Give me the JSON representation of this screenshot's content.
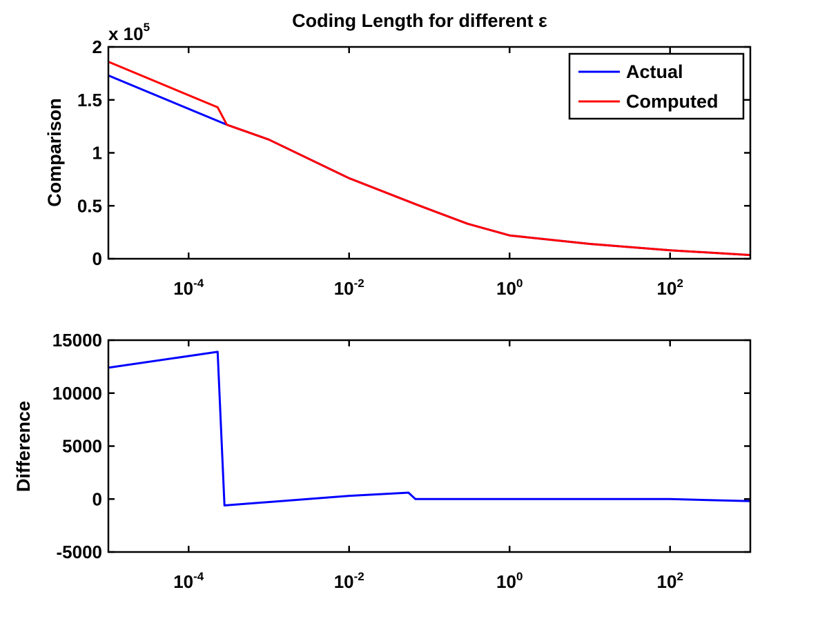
{
  "figure": {
    "title": "Coding Length for different ε"
  },
  "chart_data": [
    {
      "type": "line",
      "id": "top",
      "title": "Coding Length for different ε",
      "xlabel": "",
      "ylabel": "Comparison",
      "x_scale": "log",
      "xlim": [
        1e-05,
        1000
      ],
      "ylim": [
        0,
        200000
      ],
      "multiplier": "x 10^5",
      "multiplier_base": "x 10",
      "multiplier_exp": "5",
      "x_ticks": [
        {
          "value": 0.0001,
          "base": "10",
          "exp": "-4"
        },
        {
          "value": 0.01,
          "base": "10",
          "exp": "-2"
        },
        {
          "value": 1,
          "base": "10",
          "exp": "0"
        },
        {
          "value": 100,
          "base": "10",
          "exp": "2"
        }
      ],
      "y_ticks": [
        {
          "value": 0,
          "label": "0"
        },
        {
          "value": 50000,
          "label": "0.5"
        },
        {
          "value": 100000,
          "label": "1"
        },
        {
          "value": 150000,
          "label": "1.5"
        },
        {
          "value": 200000,
          "label": "2"
        }
      ],
      "grid": false,
      "legend": {
        "placement": "top-right"
      },
      "series": [
        {
          "name": "Actual",
          "color": "#0000ff",
          "points": [
            [
              1e-05,
              173000
            ],
            [
              0.0003,
              126500
            ],
            [
              0.001,
              112500
            ],
            [
              0.01,
              76000
            ],
            [
              0.07,
              51000
            ],
            [
              0.3,
              33000
            ],
            [
              1,
              22000
            ],
            [
              10,
              14000
            ],
            [
              100,
              8000
            ],
            [
              1000,
              3500
            ]
          ]
        },
        {
          "name": "Computed",
          "color": "#ff0000",
          "points": [
            [
              1e-05,
              186000
            ],
            [
              0.00023,
              143000
            ],
            [
              0.0003,
              126500
            ],
            [
              0.001,
              112500
            ],
            [
              0.01,
              76000
            ],
            [
              0.07,
              51000
            ],
            [
              0.3,
              33000
            ],
            [
              1,
              22000
            ],
            [
              10,
              14000
            ],
            [
              100,
              8000
            ],
            [
              1000,
              3500
            ]
          ]
        }
      ]
    },
    {
      "type": "line",
      "id": "bottom",
      "title": "",
      "xlabel": "",
      "ylabel": "Difference",
      "x_scale": "log",
      "xlim": [
        1e-05,
        1000
      ],
      "ylim": [
        -5000,
        15000
      ],
      "x_ticks": [
        {
          "value": 0.0001,
          "base": "10",
          "exp": "-4"
        },
        {
          "value": 0.01,
          "base": "10",
          "exp": "-2"
        },
        {
          "value": 1,
          "base": "10",
          "exp": "0"
        },
        {
          "value": 100,
          "base": "10",
          "exp": "2"
        }
      ],
      "y_ticks": [
        {
          "value": -5000,
          "label": "-5000"
        },
        {
          "value": 0,
          "label": "0"
        },
        {
          "value": 5000,
          "label": "5000"
        },
        {
          "value": 10000,
          "label": "10000"
        },
        {
          "value": 15000,
          "label": "15000"
        }
      ],
      "grid": false,
      "series": [
        {
          "color": "#0000ff",
          "points": [
            [
              1e-05,
              12400
            ],
            [
              0.00023,
              13900
            ],
            [
              0.00028,
              -600
            ],
            [
              0.01,
              300
            ],
            [
              0.055,
              600
            ],
            [
              0.067,
              0
            ],
            [
              1,
              0
            ],
            [
              100,
              0
            ],
            [
              1000,
              -200
            ]
          ]
        }
      ]
    }
  ]
}
